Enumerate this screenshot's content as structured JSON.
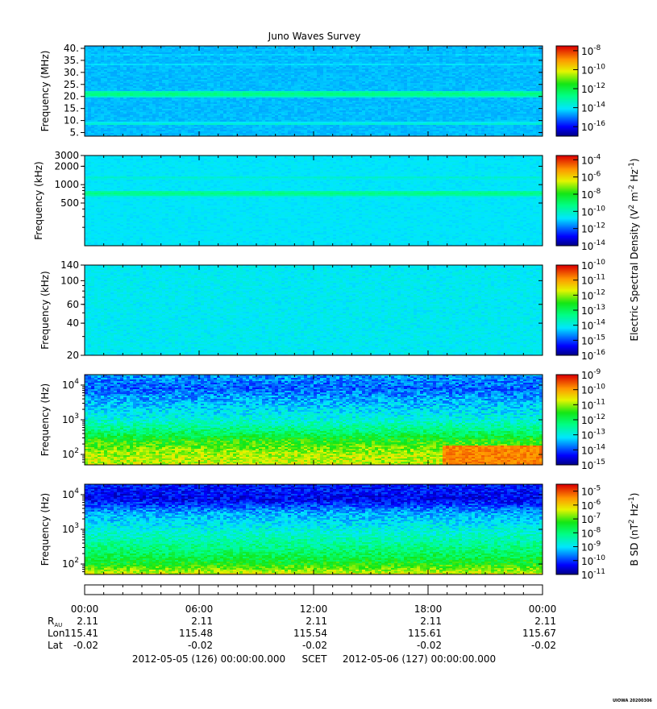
{
  "chart_data": {
    "type": "heatmap",
    "title": "Juno Waves Survey",
    "panels": [
      {
        "ylabel": "Frequency (MHz)",
        "y_ticks": [
          {
            "v": 40,
            "label": "40."
          },
          {
            "v": 35,
            "label": "35."
          },
          {
            "v": 30,
            "label": "30."
          },
          {
            "v": 25,
            "label": "25."
          },
          {
            "v": 20,
            "label": "20."
          },
          {
            "v": 15,
            "label": "15."
          },
          {
            "v": 10,
            "label": "10."
          },
          {
            "v": 5,
            "label": "5."
          }
        ],
        "y_range": [
          3.5,
          41
        ],
        "y_scale": "linear",
        "colorbar": {
          "range_exp": [
            -17,
            -7.5
          ],
          "ticks": [
            {
              "exp": -8
            },
            {
              "exp": -10
            },
            {
              "exp": -12
            },
            {
              "exp": -14
            },
            {
              "exp": -16
            }
          ]
        },
        "dominant_exp": -14.5,
        "bands": [
          {
            "f": 21.0,
            "width": 1.0,
            "exp": -12.7
          },
          {
            "f": 8.7,
            "width": 0.6,
            "exp": -13.6
          },
          {
            "f": 33.5,
            "width": 0.6,
            "exp": -14.1
          },
          {
            "f": 37.5,
            "width": 0.5,
            "exp": -14.2
          }
        ]
      },
      {
        "ylabel": "Frequency (kHz)",
        "y_ticks": [
          {
            "v": 3000,
            "label": "3000"
          },
          {
            "v": 2000,
            "label": "2000"
          },
          {
            "v": 1000,
            "label": "1000"
          },
          {
            "v": 500,
            "label": "500"
          }
        ],
        "y_range": [
          100,
          3000
        ],
        "y_scale": "log",
        "colorbar": {
          "range_exp": [
            -14,
            -3.5
          ],
          "ticks": [
            {
              "exp": -4
            },
            {
              "exp": -6
            },
            {
              "exp": -8
            },
            {
              "exp": -10
            },
            {
              "exp": -12
            },
            {
              "exp": -14
            }
          ]
        },
        "dominant_exp": -10.8,
        "bands": [
          {
            "f": 720,
            "width": 60,
            "exp": -9.3
          },
          {
            "f": 1650,
            "width": 200,
            "exp": -11.3
          },
          {
            "f": 1300,
            "width": 80,
            "exp": -10.2
          }
        ]
      },
      {
        "ylabel": "Frequency (kHz)",
        "y_ticks": [
          {
            "v": 140,
            "label": "140"
          },
          {
            "v": 100,
            "label": "100"
          },
          {
            "v": 60,
            "label": "60"
          },
          {
            "v": 40,
            "label": "40"
          },
          {
            "v": 20,
            "label": "20"
          }
        ],
        "y_range": [
          20,
          140
        ],
        "y_scale": "log",
        "colorbar": {
          "range_exp": [
            -16,
            -10
          ],
          "ticks": [
            {
              "exp": -10
            },
            {
              "exp": -11
            },
            {
              "exp": -12
            },
            {
              "exp": -13
            },
            {
              "exp": -14
            },
            {
              "exp": -15
            },
            {
              "exp": -16
            }
          ]
        },
        "dominant_exp": -14.1,
        "bands": []
      },
      {
        "ylabel": "Frequency (Hz)",
        "y_ticks": [
          {
            "v": 10000,
            "label": "10",
            "exp": "4"
          },
          {
            "v": 1000,
            "label": "10",
            "exp": "3"
          },
          {
            "v": 100,
            "label": "10",
            "exp": "2"
          }
        ],
        "y_range": [
          50,
          20000
        ],
        "y_scale": "log",
        "colorbar": {
          "range_exp": [
            -15,
            -9
          ],
          "ticks": [
            {
              "exp": -9
            },
            {
              "exp": -10
            },
            {
              "exp": -11
            },
            {
              "exp": -12
            },
            {
              "exp": -13
            },
            {
              "exp": -14
            },
            {
              "exp": -15
            }
          ]
        },
        "profile": [
          {
            "f": 50,
            "exp": -10.8
          },
          {
            "f": 120,
            "exp": -11.0
          },
          {
            "f": 250,
            "exp": -11.5
          },
          {
            "f": 500,
            "exp": -12.3
          },
          {
            "f": 1000,
            "exp": -12.9
          },
          {
            "f": 3000,
            "exp": -13.4
          },
          {
            "f": 8000,
            "exp": -13.9
          },
          {
            "f": 20000,
            "exp": -13.6
          }
        ],
        "burst": {
          "hour_start": 18.8,
          "hour_end": 24,
          "f_max": 180,
          "exp": -9.8
        }
      },
      {
        "ylabel": "Frequency (Hz)",
        "y_ticks": [
          {
            "v": 10000,
            "label": "10",
            "exp": "4"
          },
          {
            "v": 1000,
            "label": "10",
            "exp": "3"
          },
          {
            "v": 100,
            "label": "10",
            "exp": "2"
          }
        ],
        "y_range": [
          50,
          20000
        ],
        "y_scale": "log",
        "colorbar": {
          "range_exp": [
            -11,
            -4.5
          ],
          "ticks": [
            {
              "exp": -5
            },
            {
              "exp": -6
            },
            {
              "exp": -7
            },
            {
              "exp": -8
            },
            {
              "exp": -9
            },
            {
              "exp": -10
            },
            {
              "exp": -11
            }
          ]
        },
        "profile": [
          {
            "f": 50,
            "exp": -6.3
          },
          {
            "f": 100,
            "exp": -7.3
          },
          {
            "f": 300,
            "exp": -8.1
          },
          {
            "f": 1000,
            "exp": -8.8
          },
          {
            "f": 3000,
            "exp": -9.4
          },
          {
            "f": 7000,
            "exp": -10.4
          },
          {
            "f": 20000,
            "exp": -10.2
          }
        ]
      }
    ],
    "colorbar_labels": [
      {
        "text": "Electric Spectral Density (V",
        "sup1": "2",
        "mid": " m",
        "sup2": "-2",
        "mid2": " Hz",
        "sup3": "-1",
        "end": ")"
      },
      {
        "text": "B SD (nT",
        "sup1": "2",
        "mid": " Hz",
        "sup2": "-1",
        "end": ")"
      }
    ],
    "x_axis": {
      "hours": [
        0,
        6,
        12,
        18,
        24
      ],
      "labels": [
        "00:00",
        "06:00",
        "12:00",
        "18:00",
        "00:00"
      ]
    },
    "ephemeris": {
      "rows": [
        {
          "name": "R",
          "sub": "AU",
          "values": [
            "2.11",
            "2.11",
            "2.11",
            "2.11",
            "2.11"
          ]
        },
        {
          "name": "Lon",
          "values": [
            "115.41",
            "115.48",
            "115.54",
            "115.61",
            "115.67"
          ]
        },
        {
          "name": "Lat",
          "values": [
            "-0.02",
            "-0.02",
            "-0.02",
            "-0.02",
            "-0.02"
          ]
        }
      ]
    },
    "time_range": {
      "start": "2012-05-05 (126) 00:00:00.000",
      "label": "SCET",
      "end": "2012-05-06 (127) 00:00:00.000"
    },
    "footer_tag": "UIOWA 20200306"
  }
}
